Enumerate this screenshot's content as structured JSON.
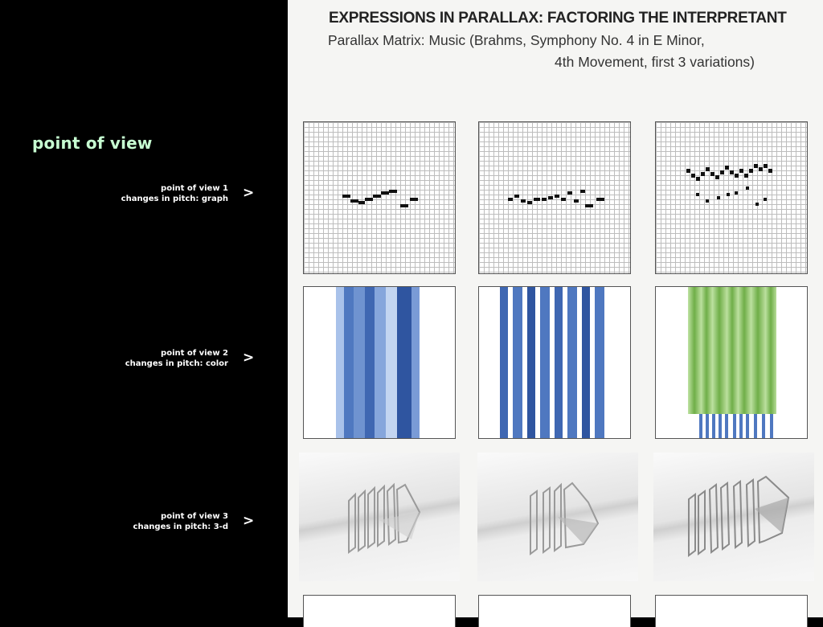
{
  "slide": {
    "pov_title": "point of view",
    "rows": [
      {
        "line1": "point of view 1",
        "line2": "changes in pitch: graph",
        "arrow": ">"
      },
      {
        "line1": "point of view 2",
        "line2": "changes in pitch: color",
        "arrow": ">"
      },
      {
        "line1": "point of view 3",
        "line2": "changes in pitch:  3-d",
        "arrow": ">"
      }
    ]
  },
  "figure": {
    "title": "EXPRESSIONS IN PARALLAX: FACTORING THE INTERPRETANT",
    "subtitle_line1": "Parallax Matrix: Music (Brahms, Symphony No. 4 in E Minor,",
    "subtitle_line2": "4th Movement, first 3 variations)"
  },
  "colors": {
    "accent_green_text": "#c7ffd2",
    "blue_dark": "#2f55a0",
    "blue_mid": "#4f78c0",
    "blue_light": "#a9c2ea",
    "green": "#8fc465"
  }
}
